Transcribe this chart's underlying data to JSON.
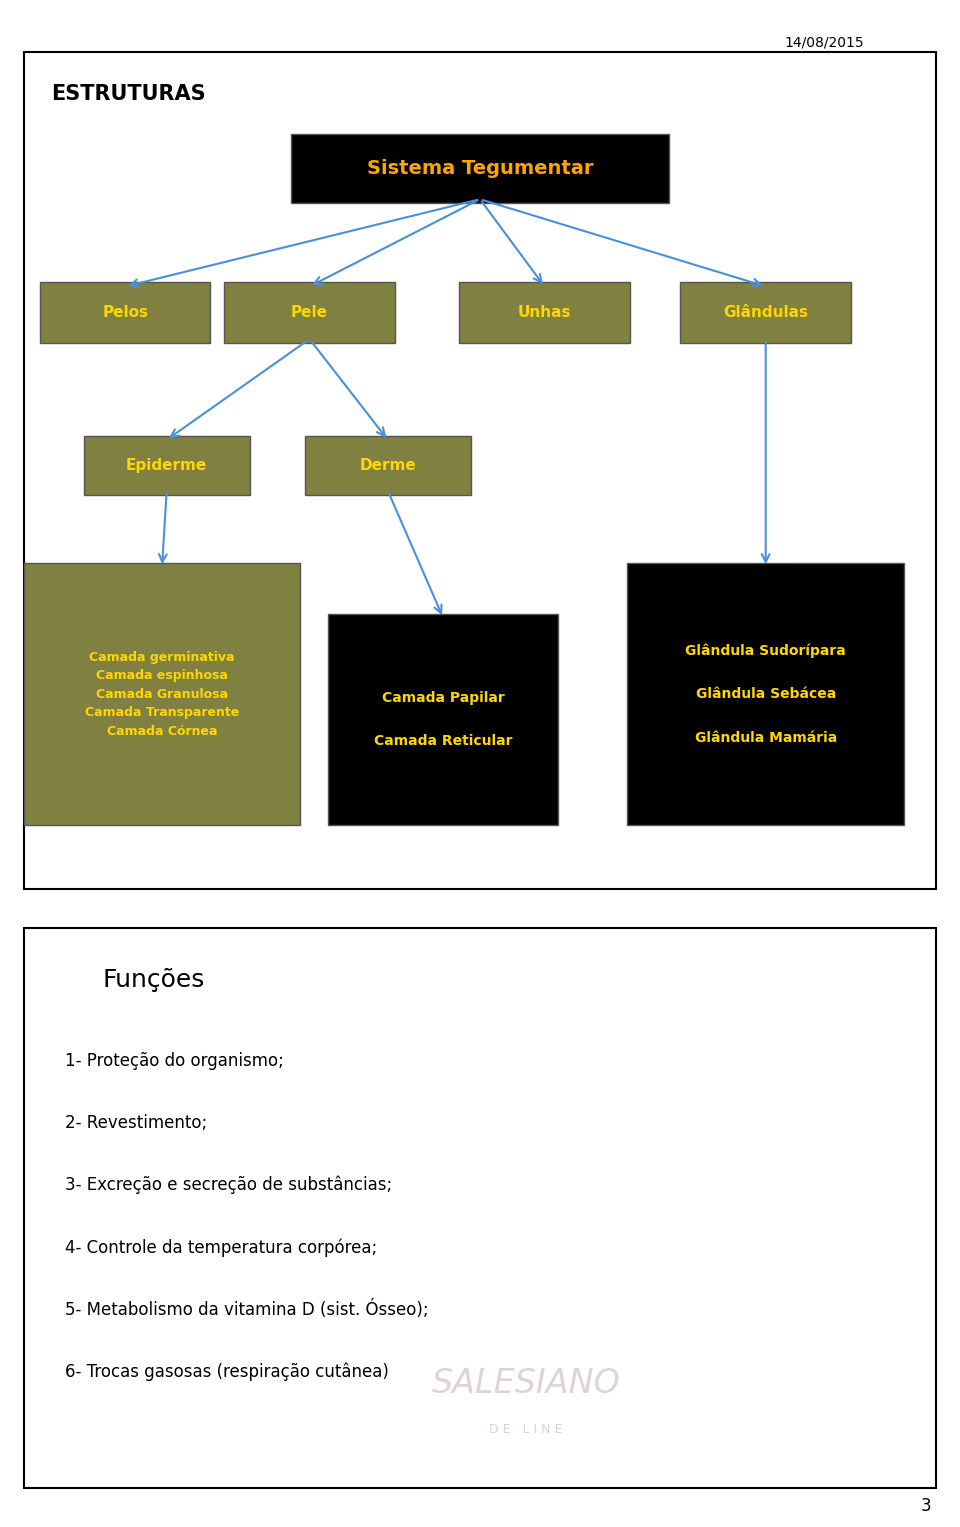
{
  "date_label": "14/08/2015",
  "slide1_title": "ESTRUTURAS",
  "root_box": {
    "text": "Sistema Tegumentar",
    "bg": "#000000",
    "fg": "#FFA500"
  },
  "level1_boxes": [
    {
      "text": "Pelos",
      "bg": "#808040",
      "fg": "#FFD700"
    },
    {
      "text": "Pele",
      "bg": "#808040",
      "fg": "#FFD700"
    },
    {
      "text": "Unhas",
      "bg": "#808040",
      "fg": "#FFD700"
    },
    {
      "text": "Glândulas",
      "bg": "#808040",
      "fg": "#FFD700"
    }
  ],
  "level2_epiderme": {
    "text": "Epiderme",
    "bg": "#808040",
    "fg": "#FFD700"
  },
  "level2_derme": {
    "text": "Derme",
    "bg": "#808040",
    "fg": "#FFD700"
  },
  "level3_epi_text": "Camada germinativa\nCamada espinhosa\nCamada Granulosa\nCamada Transparente\nCamada Córnea",
  "level3_epi_bg": "#808040",
  "level3_derme_text": "Camada Papilar\n\nCamada Reticular",
  "level3_derme_bg": "#000000",
  "level3_gland_text": "Glândula Sudorípara\n\nGlândula Sebácea\n\nGlândula Mamária",
  "level3_gland_bg": "#000000",
  "arrow_color": "#4A90D9",
  "slide2_title": "Funções",
  "funcoes_lines": [
    "1- Proteção do organismo;",
    "2- Revestimento;",
    "3- Excreção e secreção de substâncias;",
    "4- Controle da temperatura corpórea;",
    "5- Metabolismo da vitamina D (sist. Ósseo);",
    "6- Trocas gasosas (respiração cutânea)"
  ],
  "salesiano_text": "SALESIANO",
  "deline_text": "D E   L I N E",
  "page_number": "3"
}
